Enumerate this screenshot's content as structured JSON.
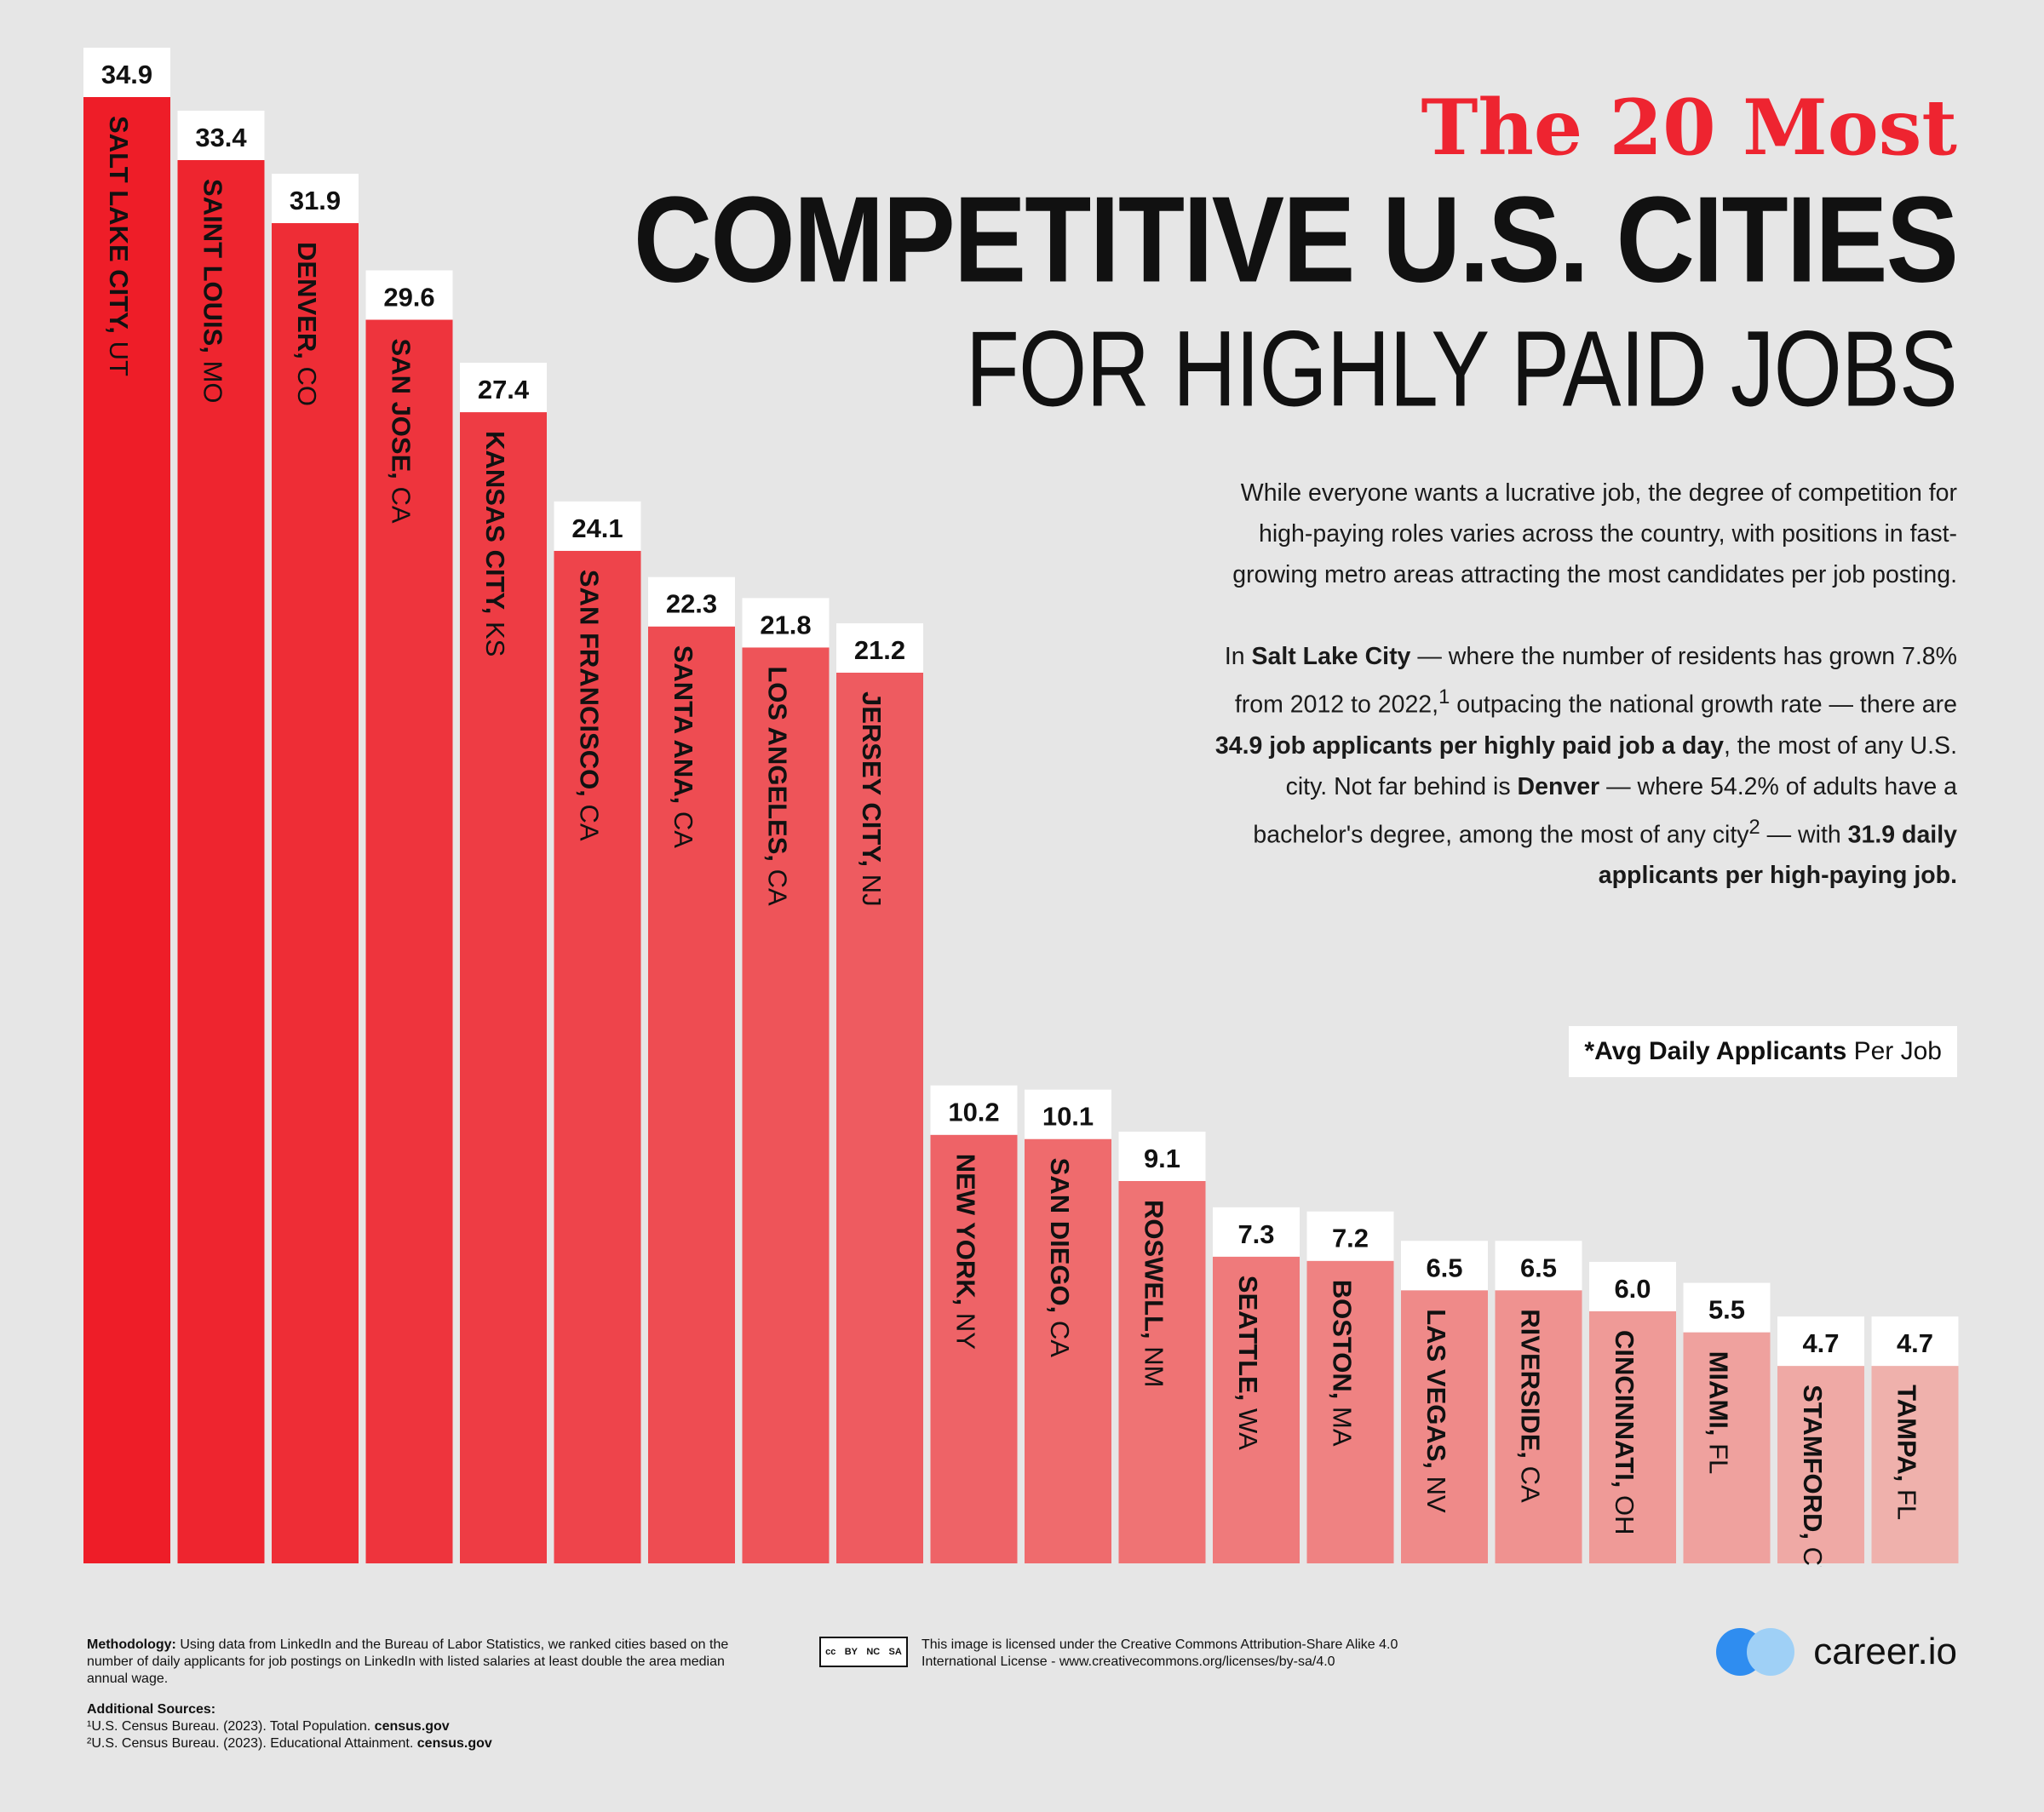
{
  "title": {
    "line1": "The 20 Most",
    "line2": "COMPETITIVE U.S. CITIES",
    "line3": "FOR HIGHLY PAID JOBS"
  },
  "intro": {
    "p1": "While everyone wants a lucrative job, the degree of competition for high-paying roles varies across the country, with positions in fast-growing metro areas attracting the most candidates per job posting.",
    "p2_a": "In ",
    "p2_b": "Salt Lake City",
    "p2_c": " — where the number of residents has grown 7.8% from 2012 to 2022,",
    "p2_sup1": "1",
    "p2_d": " outpacing the national growth rate — there are ",
    "p2_e": "34.9 job applicants per highly paid job a day",
    "p2_f": ", the most of any U.S. city. Not far behind is ",
    "p2_g": "Denver",
    "p2_h": " — where 54.2% of adults have a bachelor's degree, among the most of any city",
    "p2_sup2": "2",
    "p2_i": " — with ",
    "p2_j": "31.9 daily applicants per high-paying job."
  },
  "legend": {
    "bold": "*Avg Daily Applicants",
    "rest": " Per Job"
  },
  "footer": {
    "methodology_label": "Methodology:",
    "methodology_text": " Using data from LinkedIn and the Bureau of Labor Statistics, we ranked cities based on the number of daily applicants for job postings on LinkedIn with listed salaries at least double the area median annual wage.",
    "sources_label": "Additional Sources:",
    "source1_text": "¹U.S. Census Bureau. (2023). Total Population. ",
    "source1_link": "census.gov",
    "source2_text": "²U.S. Census Bureau. (2023). Educational Attainment. ",
    "source2_link": "census.gov",
    "license_text": "This image is licensed under the Creative Commons Attribution-Share Alike 4.0 International License - www.creativecommons.org/licenses/by-sa/4.0",
    "cc_labels": [
      "cc",
      "BY",
      "NC",
      "SA"
    ],
    "logo_text": "career.io"
  },
  "colors": {
    "bar_top": "#ee1d28",
    "bar_bottom": "#efb1ac",
    "accent": "#ee2430",
    "background": "#e6e6e6"
  },
  "chart_data": {
    "type": "bar",
    "title": "The 20 Most Competitive U.S. Cities for Highly Paid Jobs",
    "ylabel": "*Avg Daily Applicants Per Job",
    "ylim": [
      0,
      34.9
    ],
    "categories": [
      {
        "city": "SALT LAKE CITY",
        "state": "UT"
      },
      {
        "city": "SAINT LOUIS",
        "state": "MO"
      },
      {
        "city": "DENVER",
        "state": "CO"
      },
      {
        "city": "SAN JOSE",
        "state": "CA"
      },
      {
        "city": "KANSAS CITY",
        "state": "KS"
      },
      {
        "city": "SAN FRANCISCO",
        "state": "CA"
      },
      {
        "city": "SANTA ANA",
        "state": "CA"
      },
      {
        "city": "LOS ANGELES",
        "state": "CA"
      },
      {
        "city": "JERSEY CITY",
        "state": "NJ"
      },
      {
        "city": "NEW YORK",
        "state": "NY"
      },
      {
        "city": "SAN DIEGO",
        "state": "CA"
      },
      {
        "city": "ROSWELL",
        "state": "NM"
      },
      {
        "city": "SEATTLE",
        "state": "WA"
      },
      {
        "city": "BOSTON",
        "state": "MA"
      },
      {
        "city": "LAS VEGAS",
        "state": "NV"
      },
      {
        "city": "RIVERSIDE",
        "state": "CA"
      },
      {
        "city": "CINCINNATI",
        "state": "OH"
      },
      {
        "city": "MIAMI",
        "state": "FL"
      },
      {
        "city": "STAMFORD",
        "state": "CT"
      },
      {
        "city": "TAMPA",
        "state": "FL"
      }
    ],
    "values": [
      34.9,
      33.4,
      31.9,
      29.6,
      27.4,
      24.1,
      22.3,
      21.8,
      21.2,
      10.2,
      10.1,
      9.1,
      7.3,
      7.2,
      6.5,
      6.5,
      6.0,
      5.5,
      4.7,
      4.7
    ],
    "value_labels": [
      "34.9",
      "33.4",
      "31.9",
      "29.6",
      "27.4",
      "24.1",
      "22.3",
      "21.8",
      "21.2",
      "10.2",
      "10.1",
      "9.1",
      "7.3",
      "7.2",
      "6.5",
      "6.5",
      "6.0",
      "5.5",
      "4.7",
      "4.7"
    ]
  }
}
